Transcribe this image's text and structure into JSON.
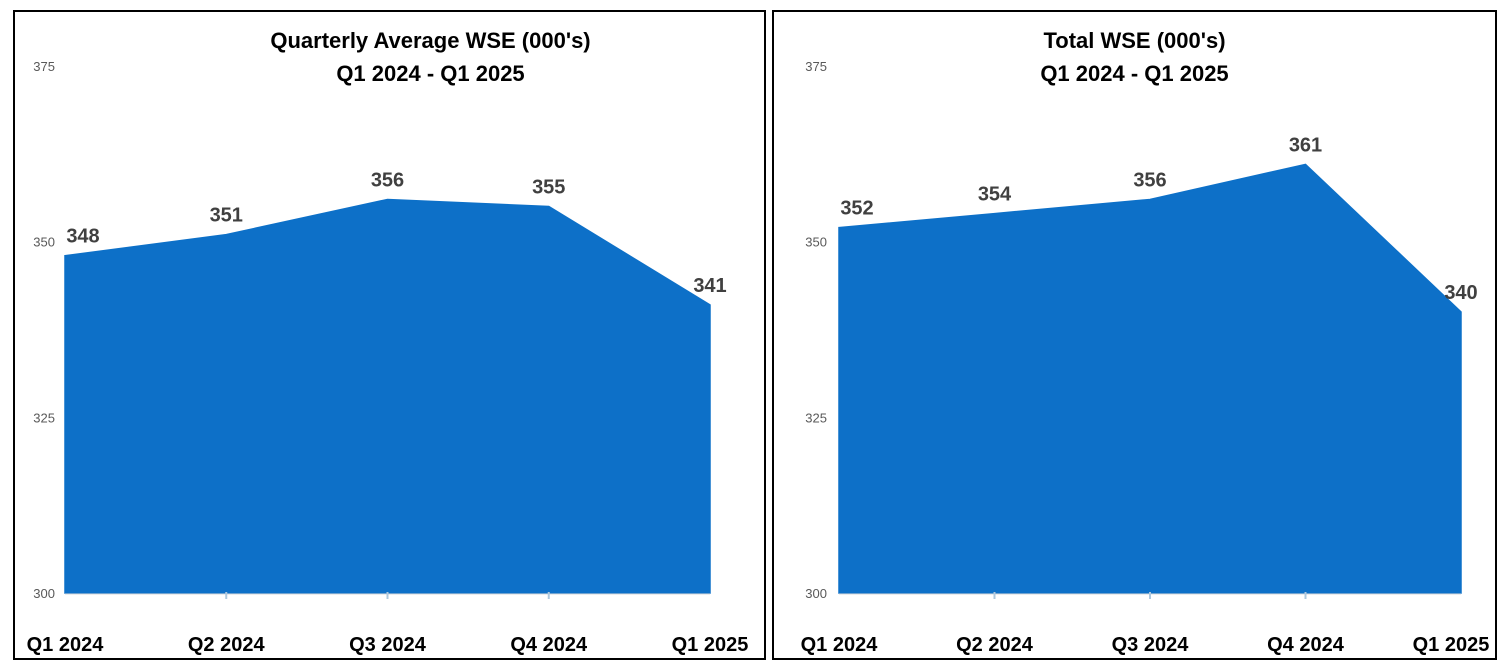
{
  "chart_data": [
    {
      "type": "area",
      "title": "Quarterly Average WSE (000's)",
      "subtitle": "Q1 2024 - Q1 2025",
      "categories": [
        "Q1 2024",
        "Q2 2024",
        "Q3 2024",
        "Q4 2024",
        "Q1 2025"
      ],
      "values": [
        348,
        351,
        356,
        355,
        341
      ],
      "data_labels": [
        "348",
        "351",
        "356",
        "355",
        "341"
      ],
      "xlabel": "",
      "ylabel": "",
      "ylim": [
        300,
        375
      ],
      "y_ticks": [
        300,
        325,
        350,
        375
      ],
      "grid": false,
      "legend": "none",
      "colors": {
        "fill": "#0d70c8",
        "data_label": "#404040",
        "y_tick": "#595959",
        "axis_line": "#d9d9d9",
        "tick_mark": "#aec8de",
        "title": "#000000",
        "x_label": "#000000"
      }
    },
    {
      "type": "area",
      "title": "Total WSE (000's)",
      "subtitle": "Q1 2024 - Q1 2025",
      "categories": [
        "Q1 2024",
        "Q2 2024",
        "Q3 2024",
        "Q4 2024",
        "Q1 2025"
      ],
      "values": [
        352,
        354,
        356,
        361,
        340
      ],
      "data_labels": [
        "352",
        "354",
        "356",
        "361",
        "340"
      ],
      "xlabel": "",
      "ylabel": "",
      "ylim": [
        300,
        375
      ],
      "y_ticks": [
        300,
        325,
        350,
        375
      ],
      "grid": false,
      "legend": "none",
      "colors": {
        "fill": "#0d70c8",
        "data_label": "#404040",
        "y_tick": "#595959",
        "axis_line": "#d9d9d9",
        "tick_mark": "#aec8de",
        "title": "#000000",
        "x_label": "#000000"
      }
    }
  ]
}
